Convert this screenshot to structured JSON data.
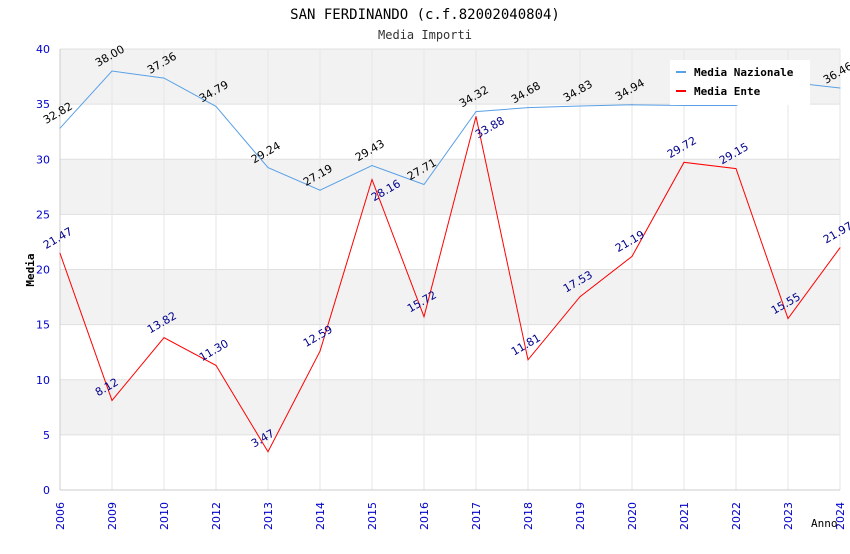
{
  "chart_data": {
    "type": "line",
    "title": "SAN FERDINANDO (c.f.82002040804)",
    "subtitle": "Media Importi",
    "xlabel": "Anno",
    "ylabel": "Media",
    "ylim": [
      0,
      40
    ],
    "yticks": [
      "0",
      "5",
      "10",
      "15",
      "20",
      "25",
      "30",
      "35",
      "40"
    ],
    "categories": [
      "2006",
      "2009",
      "2010",
      "2012",
      "2013",
      "2014",
      "2015",
      "2016",
      "2017",
      "2018",
      "2019",
      "2020",
      "2021",
      "2022",
      "2023",
      "2024"
    ],
    "legend_position": "top-right",
    "series": [
      {
        "name": "Media Nazionale",
        "color": "#5aa0e6",
        "label_color": "#000000",
        "values": [
          32.82,
          38.0,
          37.36,
          34.79,
          29.24,
          27.19,
          29.43,
          27.71,
          34.32,
          34.68,
          34.83,
          34.94,
          34.88,
          34.88,
          37.0,
          36.46
        ],
        "labels": [
          "32.82",
          "38.00",
          "37.36",
          "34.79",
          "29.24",
          "27.19",
          "29.43",
          "27.71",
          "34.32",
          "34.68",
          "34.83",
          "34.94",
          "",
          "",
          "",
          "36.46"
        ]
      },
      {
        "name": "Media Ente",
        "color": "#ff0000",
        "label_color": "#00008b",
        "values": [
          21.47,
          8.12,
          13.82,
          11.3,
          3.47,
          12.59,
          28.16,
          15.72,
          33.88,
          11.81,
          17.53,
          21.19,
          29.72,
          29.15,
          15.55,
          21.97
        ],
        "labels": [
          "21.47",
          "8.12",
          "13.82",
          "11.30",
          "3.47",
          "12.59",
          "28.16",
          "15.72",
          "33.88",
          "11.81",
          "17.53",
          "21.19",
          "29.72",
          "29.15",
          "15.55",
          "21.97"
        ]
      }
    ]
  }
}
